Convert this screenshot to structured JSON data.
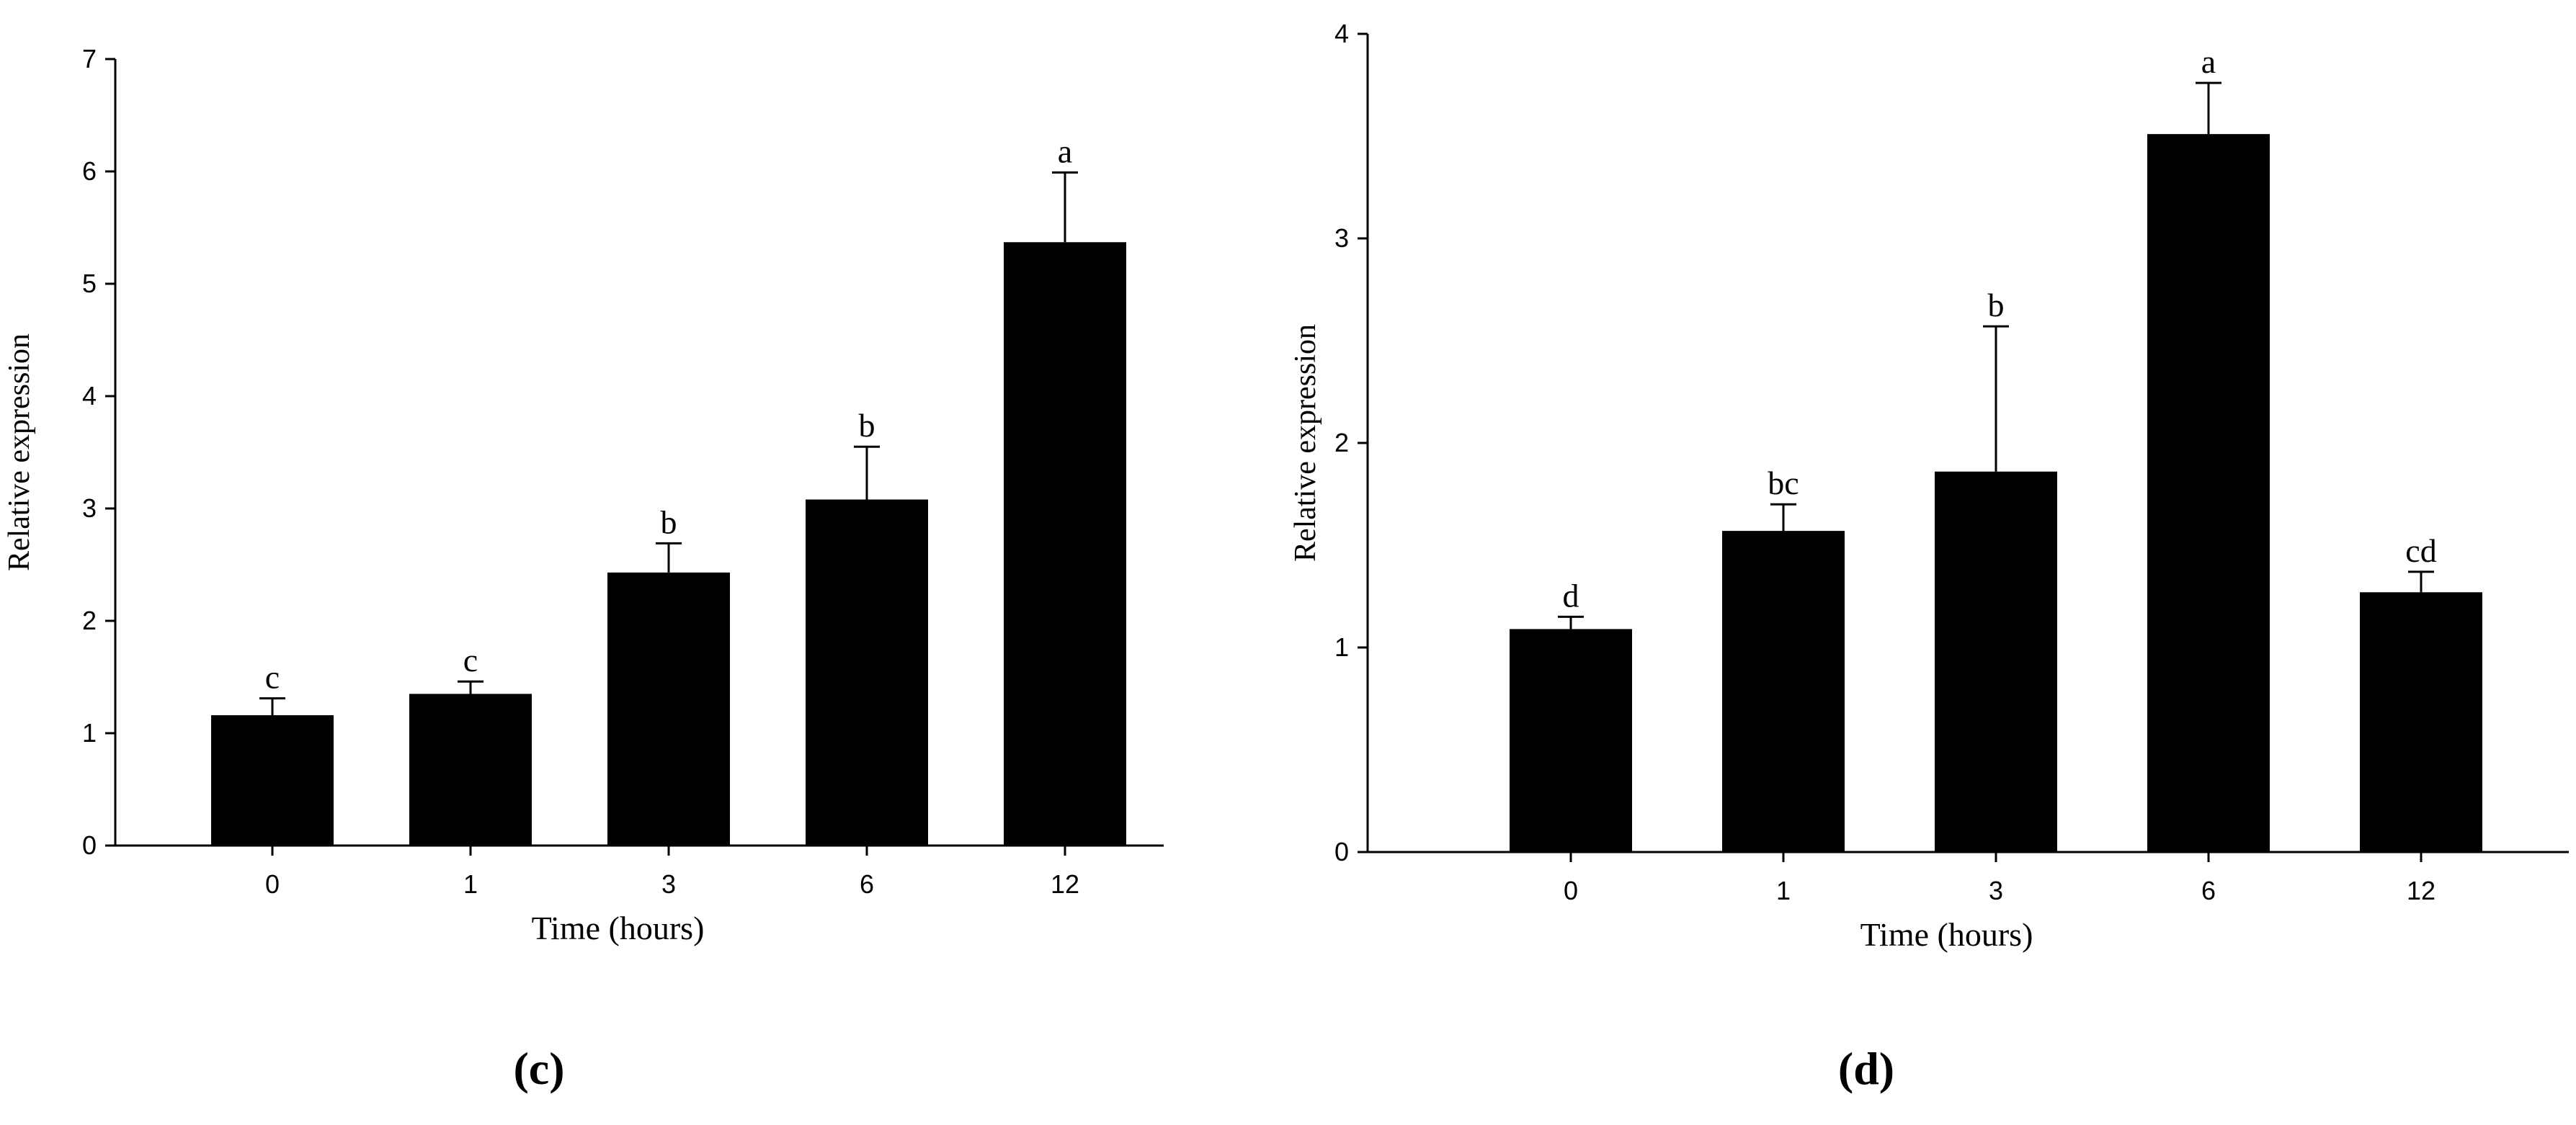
{
  "chart_data": [
    {
      "panel_label": "(c)",
      "type": "bar",
      "categories": [
        "0",
        "1",
        "3",
        "6",
        "12"
      ],
      "values": [
        1.16,
        1.35,
        2.43,
        3.08,
        5.37
      ],
      "errors": [
        0.15,
        0.11,
        0.26,
        0.47,
        0.62
      ],
      "significance": [
        "c",
        "c",
        "b",
        "b",
        "a"
      ],
      "xlabel": "Time (hours)",
      "ylabel": "Relative expression",
      "ylim": [
        0,
        7
      ],
      "yticks": [
        "0",
        "1",
        "2",
        "3",
        "4",
        "5",
        "6",
        "7"
      ],
      "grid": false,
      "bar_color": "#000000"
    },
    {
      "panel_label": "(d)",
      "type": "bar",
      "categories": [
        "0",
        "1",
        "3",
        "6",
        "12"
      ],
      "values": [
        1.09,
        1.57,
        1.86,
        3.51,
        1.27
      ],
      "errors": [
        0.06,
        0.13,
        0.71,
        0.25,
        0.1
      ],
      "significance": [
        "d",
        "bc",
        "b",
        "a",
        "cd"
      ],
      "xlabel": "Time (hours)",
      "ylabel": "Relative expression",
      "ylim": [
        0,
        4
      ],
      "yticks": [
        "0",
        "1",
        "2",
        "3",
        "4"
      ],
      "grid": false,
      "bar_color": "#000000"
    }
  ]
}
